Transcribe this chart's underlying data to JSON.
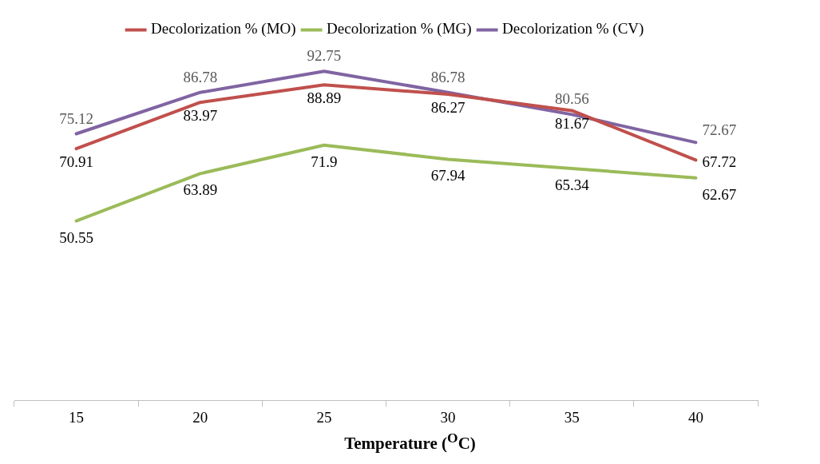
{
  "chart_data": {
    "type": "line",
    "xlabel": "Temperature ($^{O}$C)",
    "categories": [
      "15",
      "20",
      "25",
      "30",
      "35",
      "40"
    ],
    "series": [
      {
        "name": "Decolorization % (MO)",
        "color": "#c0504d",
        "values": [
          70.91,
          83.97,
          88.89,
          86.27,
          81.67,
          67.72
        ]
      },
      {
        "name": "Decolorization % (MG)",
        "color": "#9bbb59",
        "values": [
          50.55,
          63.89,
          71.9,
          67.94,
          65.34,
          62.67
        ]
      },
      {
        "name": "Decolorization % (CV)",
        "color": "#8064a2",
        "values": [
          75.12,
          86.78,
          92.75,
          86.78,
          80.56,
          72.67
        ]
      }
    ],
    "tick_labels": "x",
    "grid": false,
    "legend": "top",
    "marker": "none",
    "line_style": "solid",
    "data_labels": true
  }
}
